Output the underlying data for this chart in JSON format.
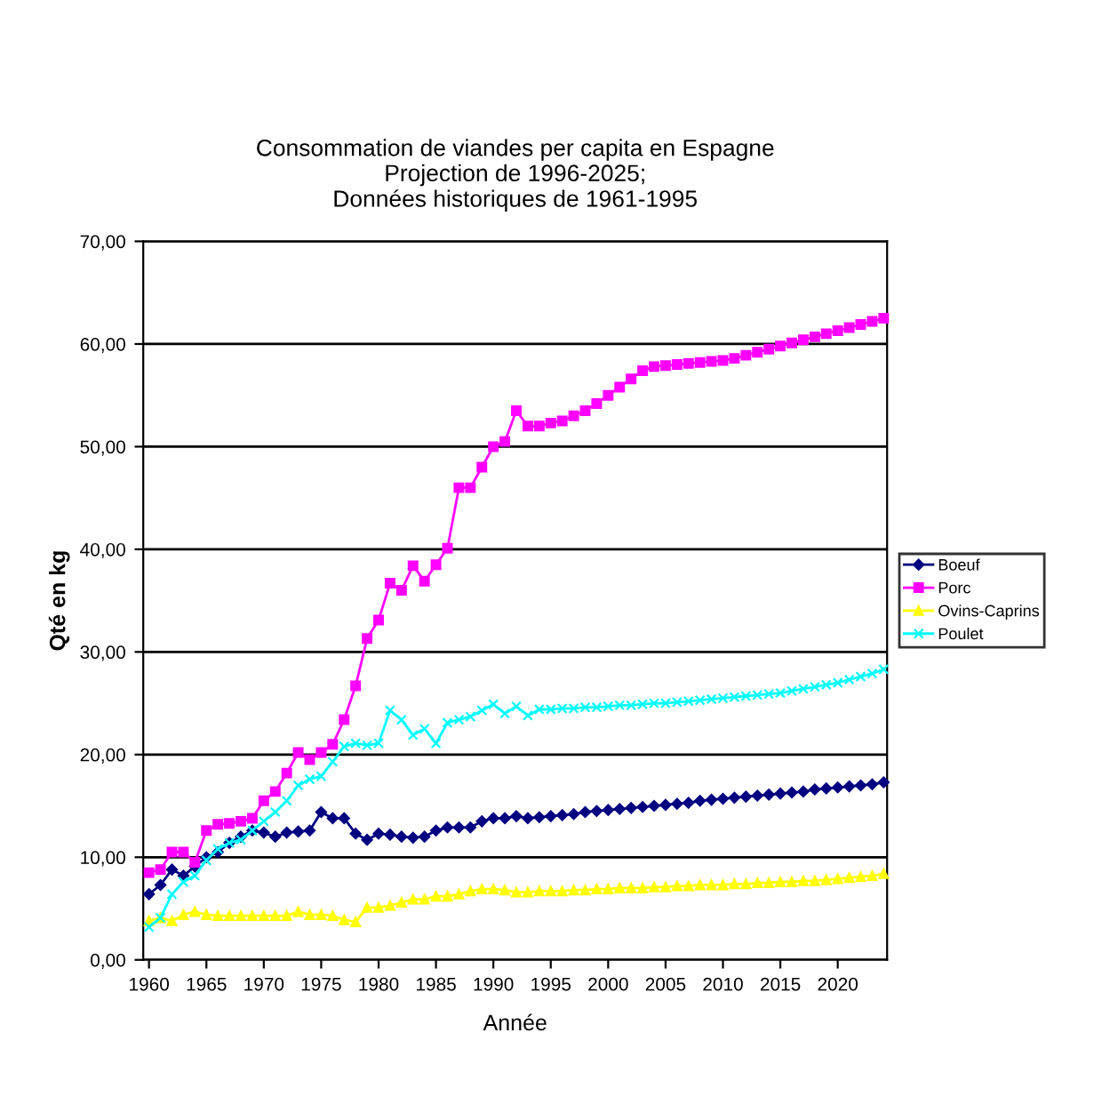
{
  "chart_data": {
    "type": "line",
    "title": "Consommation de viandes per capita en Espagne\nProjection de 1996-2025;\nDonnées historiques de 1961-1995",
    "xlabel": "Année",
    "ylabel": "Qté en kg",
    "x": [
      1960,
      1961,
      1962,
      1963,
      1964,
      1965,
      1966,
      1967,
      1968,
      1969,
      1970,
      1971,
      1972,
      1973,
      1974,
      1975,
      1976,
      1977,
      1978,
      1979,
      1980,
      1981,
      1982,
      1983,
      1984,
      1985,
      1986,
      1987,
      1988,
      1989,
      1990,
      1991,
      1992,
      1993,
      1994,
      1995,
      1996,
      1997,
      1998,
      1999,
      2000,
      2001,
      2002,
      2003,
      2004,
      2005,
      2006,
      2007,
      2008,
      2009,
      2010,
      2011,
      2012,
      2013,
      2014,
      2015,
      2016,
      2017,
      2018,
      2019,
      2020,
      2021,
      2022,
      2023,
      2024
    ],
    "series": [
      {
        "name": "Boeuf",
        "color": "#000080",
        "marker": "diamond",
        "values": [
          6.4,
          7.3,
          8.8,
          8.2,
          9.1,
          10,
          10.5,
          11.4,
          12,
          12.6,
          12.4,
          12,
          12.4,
          12.5,
          12.6,
          14.4,
          13.8,
          13.8,
          12.3,
          11.7,
          12.3,
          12.2,
          12,
          11.9,
          12,
          12.6,
          12.9,
          12.9,
          12.9,
          13.5,
          13.8,
          13.8,
          14.0,
          13.8,
          13.9,
          14.0,
          14.1,
          14.2,
          14.4,
          14.5,
          14.6,
          14.7,
          14.8,
          14.9,
          15.0,
          15.1,
          15.2,
          15.3,
          15.5,
          15.6,
          15.7,
          15.8,
          15.9,
          16.0,
          16.1,
          16.2,
          16.3,
          16.4,
          16.6,
          16.7,
          16.8,
          16.9,
          17.0,
          17.1,
          17.3
        ]
      },
      {
        "name": "Porc",
        "color": "#ff00ff",
        "marker": "square",
        "values": [
          8.5,
          8.8,
          10.5,
          10.5,
          9.5,
          12.6,
          13.2,
          13.3,
          13.5,
          13.8,
          15.5,
          16.4,
          18.2,
          20.2,
          19.5,
          20.2,
          21,
          23.4,
          26.7,
          31.3,
          33.1,
          36.7,
          36,
          38.4,
          36.9,
          38.5,
          40.1,
          46,
          46,
          48,
          50,
          50.5,
          53.5,
          52,
          52,
          52.3,
          52.5,
          53,
          53.5,
          54.2,
          55,
          55.8,
          56.6,
          57.4,
          57.8,
          57.9,
          58,
          58.1,
          58.2,
          58.3,
          58.4,
          58.6,
          58.9,
          59.2,
          59.5,
          59.8,
          60.1,
          60.4,
          60.7,
          61,
          61.3,
          61.6,
          61.9,
          62.2,
          62.5
        ]
      },
      {
        "name": "Ovins-Caprins",
        "color": "#ffff00",
        "marker": "triangle",
        "values": [
          3.8,
          4.1,
          3.8,
          4.4,
          4.7,
          4.4,
          4.3,
          4.3,
          4.3,
          4.3,
          4.3,
          4.3,
          4.3,
          4.7,
          4.4,
          4.4,
          4.3,
          3.9,
          3.7,
          5.1,
          5.1,
          5.3,
          5.6,
          5.9,
          5.9,
          6.2,
          6.2,
          6.4,
          6.7,
          6.9,
          6.9,
          6.8,
          6.6,
          6.6,
          6.7,
          6.7,
          6.7,
          6.8,
          6.8,
          6.9,
          6.9,
          7.0,
          7.0,
          7.0,
          7.1,
          7.1,
          7.2,
          7.2,
          7.3,
          7.3,
          7.3,
          7.4,
          7.4,
          7.5,
          7.5,
          7.6,
          7.6,
          7.7,
          7.7,
          7.8,
          7.9,
          8.0,
          8.1,
          8.2,
          8.4
        ]
      },
      {
        "name": "Poulet",
        "color": "#00ffff",
        "marker": "cross",
        "values": [
          3.2,
          4.1,
          6.4,
          7.6,
          8.2,
          9.7,
          10.8,
          11.4,
          11.7,
          12.6,
          13.5,
          14.4,
          15.5,
          17,
          17.6,
          17.9,
          19.3,
          20.8,
          21.1,
          20.9,
          21.1,
          24.3,
          23.4,
          21.9,
          22.5,
          21.1,
          23.1,
          23.4,
          23.7,
          24.3,
          24.9,
          24.0,
          24.7,
          23.8,
          24.4,
          24.4,
          24.5,
          24.5,
          24.6,
          24.6,
          24.7,
          24.8,
          24.8,
          24.9,
          25.0,
          25.0,
          25.1,
          25.2,
          25.3,
          25.4,
          25.5,
          25.6,
          25.7,
          25.8,
          25.9,
          26.0,
          26.2,
          26.4,
          26.6,
          26.8,
          27.0,
          27.3,
          27.6,
          27.9,
          28.3
        ]
      }
    ],
    "xlim": [
      1959.5,
      2024.3
    ],
    "xticks": [
      1960,
      1965,
      1970,
      1975,
      1980,
      1985,
      1990,
      1995,
      2000,
      2005,
      2010,
      2015,
      2020
    ],
    "ylim": [
      0,
      70
    ],
    "yticks": [
      {
        "value": 0,
        "label": "0,00"
      },
      {
        "value": 10,
        "label": "10,00"
      },
      {
        "value": 20,
        "label": "20,00"
      },
      {
        "value": 30,
        "label": "30,00"
      },
      {
        "value": 40,
        "label": "40,00"
      },
      {
        "value": 50,
        "label": "50,00"
      },
      {
        "value": 60,
        "label": "60,00"
      },
      {
        "value": 70,
        "label": "70,00"
      }
    ],
    "grid": "y",
    "legend": "right",
    "line_style": "solid"
  }
}
